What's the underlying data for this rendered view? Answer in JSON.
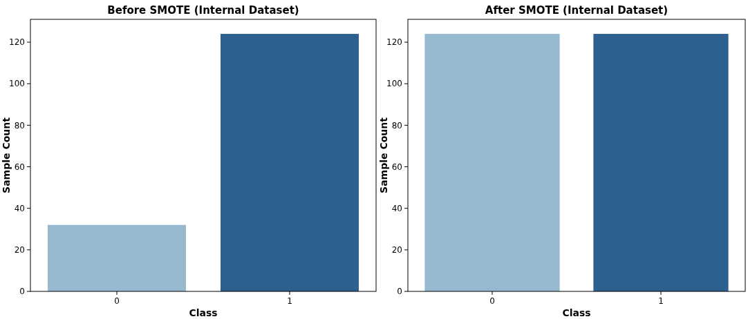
{
  "chart_data": [
    {
      "type": "bar",
      "title": "Before SMOTE (Internal Dataset)",
      "xlabel": "Class",
      "ylabel": "Sample Count",
      "categories": [
        "0",
        "1"
      ],
      "values": [
        32,
        124
      ],
      "colors": [
        "#96b9d0",
        "#2d5f8f"
      ],
      "ylim": [
        0,
        131
      ],
      "yticks": [
        0,
        20,
        40,
        60,
        80,
        100,
        120
      ],
      "grid": false
    },
    {
      "type": "bar",
      "title": "After SMOTE (Internal Dataset)",
      "xlabel": "Class",
      "ylabel": "Sample Count",
      "categories": [
        "0",
        "1"
      ],
      "values": [
        124,
        124
      ],
      "colors": [
        "#96b9d0",
        "#2d5f8f"
      ],
      "ylim": [
        0,
        131
      ],
      "yticks": [
        0,
        20,
        40,
        60,
        80,
        100,
        120
      ],
      "grid": false
    }
  ]
}
